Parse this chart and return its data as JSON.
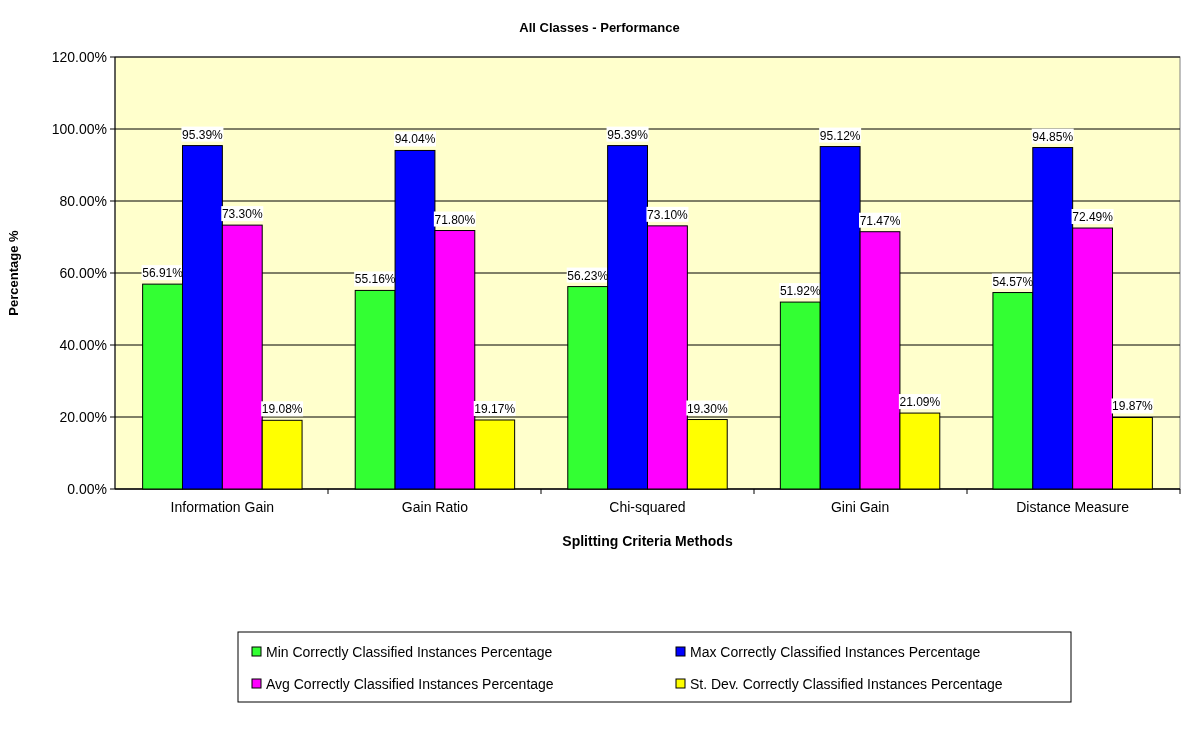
{
  "chart_data": {
    "type": "bar",
    "title": "All Classes - Performance",
    "xlabel": "Splitting Criteria Methods",
    "ylabel": "Percentage %",
    "categories": [
      "Information Gain",
      "Gain Ratio",
      "Chi-squared",
      "Gini Gain",
      "Distance Measure"
    ],
    "series": [
      {
        "name": "Min Correctly Classified Instances Percentage",
        "color": "#33ff33",
        "values": [
          56.91,
          55.16,
          56.23,
          51.92,
          54.57
        ],
        "value_labels": [
          "56.91%",
          "55.16%",
          "56.23%",
          "51.92%",
          "54.57%"
        ]
      },
      {
        "name": "Max Correctly Classified Instances Percentage",
        "color": "#0000ff",
        "values": [
          95.39,
          94.04,
          95.39,
          95.12,
          94.85
        ],
        "value_labels": [
          "95.39%",
          "94.04%",
          "95.39%",
          "95.12%",
          "94.85%"
        ]
      },
      {
        "name": "Avg Correctly Classified Instances Percentage",
        "color": "#ff00ff",
        "values": [
          73.3,
          71.8,
          73.1,
          71.47,
          72.49
        ],
        "value_labels": [
          "73.30%",
          "71.80%",
          "73.10%",
          "71.47%",
          "72.49%"
        ]
      },
      {
        "name": "St. Dev. Correctly Classified Instances Percentage",
        "color": "#ffff00",
        "values": [
          19.08,
          19.17,
          19.3,
          21.09,
          19.87
        ],
        "value_labels": [
          "19.08%",
          "19.17%",
          "19.30%",
          "21.09%",
          "19.87%"
        ]
      }
    ],
    "ylim": [
      0,
      120
    ],
    "yticks": [
      {
        "value": 0,
        "label": "0.00%"
      },
      {
        "value": 20,
        "label": "20.00%"
      },
      {
        "value": 40,
        "label": "40.00%"
      },
      {
        "value": 60,
        "label": "60.00%"
      },
      {
        "value": 80,
        "label": "80.00%"
      },
      {
        "value": 100,
        "label": "100.00%"
      },
      {
        "value": 120,
        "label": "120.00%"
      }
    ],
    "grid": "y",
    "legend": "bottom"
  }
}
